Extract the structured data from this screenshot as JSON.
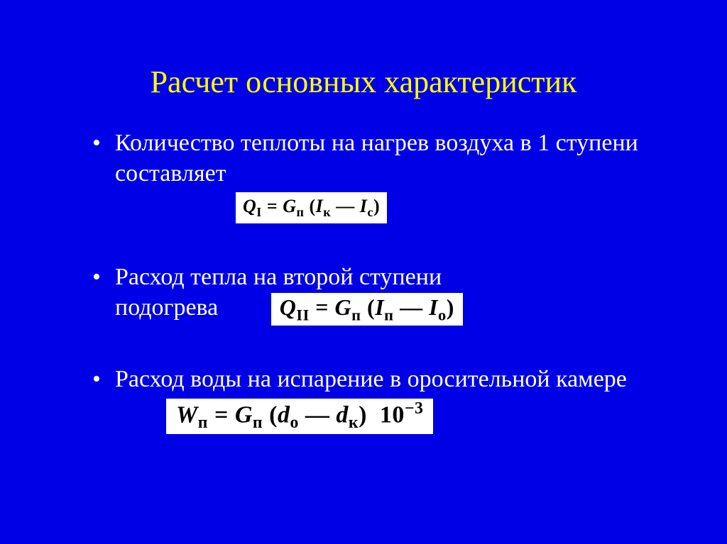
{
  "colors": {
    "background": "#0000e6",
    "title": "#ffff00",
    "body_text": "#ffffff",
    "formula_bg": "#ffffff",
    "formula_text": "#000000"
  },
  "typography": {
    "family": "Times New Roman",
    "title_size_pt": 44,
    "body_size_pt": 34,
    "formula_style": "italic"
  },
  "title": "Расчет основных характеристик",
  "bullets": [
    {
      "text": "Количество теплоты на нагрев воздуха в 1 ступени  составляет",
      "formula_html": "Q<sub>I</sub> <span class='rom'>=</span> G<sub>п</sub> <span class='rom'>(</span>I<sub>к</sub> <span class='rom'>—</span> I<sub>с</sub><span class='rom'>)</span>",
      "formula_position": "below-indent"
    },
    {
      "text_before": "Расход тепла на второй ступени",
      "text_after": "подогрева",
      "formula_html": "Q<sub>II</sub> <span class='rom'>=</span> G<sub>п</sub> <span class='rom'>(</span>I<sub>п</sub> <span class='rom'>—</span> I<sub>о</sub><span class='rom'>)</span>",
      "formula_position": "inline-after-second-line"
    },
    {
      "text": "Расход воды на испарение в оросительной камере",
      "formula_html": "W<sub>п</sub> <span class='rom'>=</span> G<sub>п</sub> <span class='rom'>(</span>d<sub>о</sub> <span class='rom'>—</span> d<sub>к</sub><span class='rom'>)</span>&nbsp;&nbsp;<span class='rom'>10</span><span class='sup'>−3</span>",
      "formula_position": "below-indent"
    }
  ]
}
